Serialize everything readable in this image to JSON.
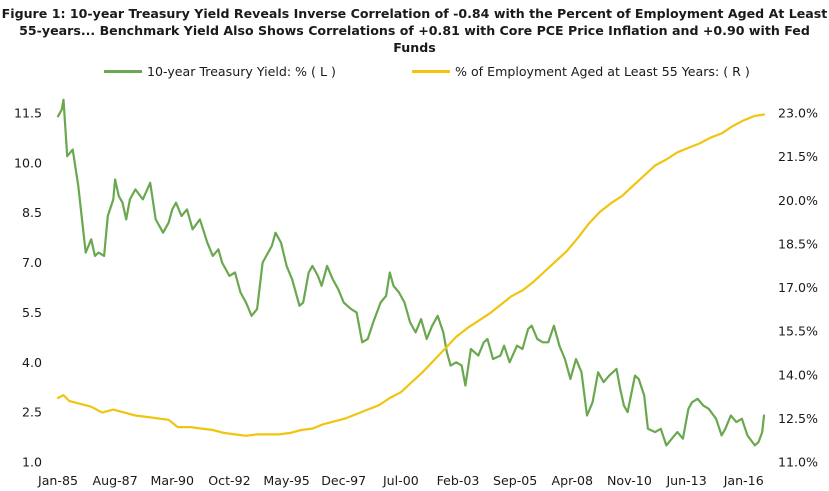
{
  "title": "Figure 1: 10-year Treasury Yield Reveals Inverse Correlation of -0.84 with the Percent of Employment Aged At Least 55-years... Benchmark Yield Also Shows Correlations of +0.81 with Core PCE Price Inflation and +0.90 with Fed Funds",
  "chart_data": {
    "type": "line",
    "title": "Figure 1: 10-year Treasury Yield Reveals Inverse Correlation of -0.84 with the Percent of Employment Aged At Least 55-years... Benchmark Yield Also Shows Correlations of +0.81 with Core PCE Price Inflation and +0.90 with Fed Funds",
    "x_tick_labels": [
      "Jan-85",
      "Aug-87",
      "Mar-90",
      "Oct-92",
      "May-95",
      "Dec-97",
      "Jul-00",
      "Feb-03",
      "Sep-05",
      "Apr-08",
      "Nov-10",
      "Jun-13",
      "Jan-16"
    ],
    "x_range": [
      "1985-01",
      "2016-12"
    ],
    "y_left": {
      "ticks": [
        "1.0",
        "2.5",
        "4.0",
        "5.5",
        "7.0",
        "8.5",
        "10.0",
        "11.5"
      ],
      "range": [
        1.0,
        11.5
      ]
    },
    "y_right": {
      "ticks": [
        "11.0%",
        "12.5%",
        "14.0%",
        "15.5%",
        "17.0%",
        "18.5%",
        "20.0%",
        "21.5%",
        "23.0%"
      ],
      "range": [
        11.0,
        23.0
      ]
    },
    "grid": false,
    "legend_position": "top",
    "series": [
      {
        "name": "10-year Treasury Yield: % ( L )",
        "axis": "left",
        "color": "#6aa84f",
        "points": [
          [
            "1985-01",
            11.4
          ],
          [
            "1985-03",
            11.6
          ],
          [
            "1985-04",
            11.9
          ],
          [
            "1985-06",
            10.2
          ],
          [
            "1985-09",
            10.4
          ],
          [
            "1985-12",
            9.3
          ],
          [
            "1986-02",
            8.3
          ],
          [
            "1986-04",
            7.3
          ],
          [
            "1986-07",
            7.7
          ],
          [
            "1986-09",
            7.2
          ],
          [
            "1986-11",
            7.3
          ],
          [
            "1987-02",
            7.2
          ],
          [
            "1987-04",
            8.4
          ],
          [
            "1987-07",
            8.9
          ],
          [
            "1987-08",
            9.5
          ],
          [
            "1987-10",
            9.0
          ],
          [
            "1987-12",
            8.8
          ],
          [
            "1988-02",
            8.3
          ],
          [
            "1988-04",
            8.9
          ],
          [
            "1988-07",
            9.2
          ],
          [
            "1988-11",
            8.9
          ],
          [
            "1989-03",
            9.4
          ],
          [
            "1989-06",
            8.3
          ],
          [
            "1989-10",
            7.9
          ],
          [
            "1990-01",
            8.2
          ],
          [
            "1990-03",
            8.6
          ],
          [
            "1990-05",
            8.8
          ],
          [
            "1990-08",
            8.4
          ],
          [
            "1990-11",
            8.6
          ],
          [
            "1991-02",
            8.0
          ],
          [
            "1991-06",
            8.3
          ],
          [
            "1991-10",
            7.6
          ],
          [
            "1992-01",
            7.2
          ],
          [
            "1992-04",
            7.4
          ],
          [
            "1992-06",
            7.0
          ],
          [
            "1992-10",
            6.6
          ],
          [
            "1993-01",
            6.7
          ],
          [
            "1993-04",
            6.1
          ],
          [
            "1993-07",
            5.8
          ],
          [
            "1993-10",
            5.4
          ],
          [
            "1994-01",
            5.6
          ],
          [
            "1994-04",
            7.0
          ],
          [
            "1994-07",
            7.3
          ],
          [
            "1994-09",
            7.5
          ],
          [
            "1994-11",
            7.9
          ],
          [
            "1995-02",
            7.6
          ],
          [
            "1995-05",
            6.9
          ],
          [
            "1995-08",
            6.5
          ],
          [
            "1995-12",
            5.7
          ],
          [
            "1996-02",
            5.8
          ],
          [
            "1996-05",
            6.7
          ],
          [
            "1996-07",
            6.9
          ],
          [
            "1996-10",
            6.6
          ],
          [
            "1996-12",
            6.3
          ],
          [
            "1997-03",
            6.9
          ],
          [
            "1997-06",
            6.5
          ],
          [
            "1997-09",
            6.2
          ],
          [
            "1997-12",
            5.8
          ],
          [
            "1998-04",
            5.6
          ],
          [
            "1998-07",
            5.5
          ],
          [
            "1998-10",
            4.6
          ],
          [
            "1999-01",
            4.7
          ],
          [
            "1999-04",
            5.2
          ],
          [
            "1999-08",
            5.8
          ],
          [
            "1999-11",
            6.0
          ],
          [
            "2000-01",
            6.7
          ],
          [
            "2000-03",
            6.3
          ],
          [
            "2000-06",
            6.1
          ],
          [
            "2000-09",
            5.8
          ],
          [
            "2000-12",
            5.2
          ],
          [
            "2001-03",
            4.9
          ],
          [
            "2001-06",
            5.3
          ],
          [
            "2001-09",
            4.7
          ],
          [
            "2001-12",
            5.1
          ],
          [
            "2002-03",
            5.4
          ],
          [
            "2002-06",
            4.9
          ],
          [
            "2002-08",
            4.3
          ],
          [
            "2002-10",
            3.9
          ],
          [
            "2003-01",
            4.0
          ],
          [
            "2003-04",
            3.9
          ],
          [
            "2003-06",
            3.3
          ],
          [
            "2003-09",
            4.4
          ],
          [
            "2004-01",
            4.2
          ],
          [
            "2004-04",
            4.6
          ],
          [
            "2004-06",
            4.7
          ],
          [
            "2004-09",
            4.1
          ],
          [
            "2005-01",
            4.2
          ],
          [
            "2005-03",
            4.5
          ],
          [
            "2005-06",
            4.0
          ],
          [
            "2005-10",
            4.5
          ],
          [
            "2006-01",
            4.4
          ],
          [
            "2006-04",
            5.0
          ],
          [
            "2006-06",
            5.1
          ],
          [
            "2006-09",
            4.7
          ],
          [
            "2006-12",
            4.6
          ],
          [
            "2007-03",
            4.6
          ],
          [
            "2007-06",
            5.1
          ],
          [
            "2007-09",
            4.5
          ],
          [
            "2007-12",
            4.1
          ],
          [
            "2008-03",
            3.5
          ],
          [
            "2008-06",
            4.1
          ],
          [
            "2008-09",
            3.7
          ],
          [
            "2008-12",
            2.4
          ],
          [
            "2009-03",
            2.8
          ],
          [
            "2009-06",
            3.7
          ],
          [
            "2009-09",
            3.4
          ],
          [
            "2009-12",
            3.6
          ],
          [
            "2010-04",
            3.8
          ],
          [
            "2010-06",
            3.2
          ],
          [
            "2010-08",
            2.7
          ],
          [
            "2010-10",
            2.5
          ],
          [
            "2011-02",
            3.6
          ],
          [
            "2011-04",
            3.5
          ],
          [
            "2011-07",
            3.0
          ],
          [
            "2011-09",
            2.0
          ],
          [
            "2012-01",
            1.9
          ],
          [
            "2012-04",
            2.0
          ],
          [
            "2012-07",
            1.5
          ],
          [
            "2012-10",
            1.7
          ],
          [
            "2013-01",
            1.9
          ],
          [
            "2013-04",
            1.7
          ],
          [
            "2013-07",
            2.6
          ],
          [
            "2013-09",
            2.8
          ],
          [
            "2013-12",
            2.9
          ],
          [
            "2014-03",
            2.7
          ],
          [
            "2014-06",
            2.6
          ],
          [
            "2014-10",
            2.3
          ],
          [
            "2015-01",
            1.8
          ],
          [
            "2015-03",
            2.0
          ],
          [
            "2015-06",
            2.4
          ],
          [
            "2015-09",
            2.2
          ],
          [
            "2015-12",
            2.3
          ],
          [
            "2016-03",
            1.8
          ],
          [
            "2016-07",
            1.5
          ],
          [
            "2016-09",
            1.6
          ],
          [
            "2016-11",
            1.9
          ],
          [
            "2016-12",
            2.4
          ]
        ]
      },
      {
        "name": "% of Employment Aged at Least 55 Years: ( R )",
        "axis": "right",
        "color": "#f1c40f",
        "points": [
          [
            "1985-01",
            13.2
          ],
          [
            "1985-04",
            13.3
          ],
          [
            "1985-07",
            13.1
          ],
          [
            "1986-01",
            13.0
          ],
          [
            "1986-07",
            12.9
          ],
          [
            "1987-01",
            12.7
          ],
          [
            "1987-07",
            12.8
          ],
          [
            "1988-01",
            12.7
          ],
          [
            "1988-07",
            12.6
          ],
          [
            "1989-01",
            12.55
          ],
          [
            "1989-07",
            12.5
          ],
          [
            "1990-01",
            12.45
          ],
          [
            "1990-06",
            12.2
          ],
          [
            "1991-01",
            12.2
          ],
          [
            "1991-07",
            12.15
          ],
          [
            "1992-01",
            12.1
          ],
          [
            "1992-07",
            12.0
          ],
          [
            "1993-01",
            11.95
          ],
          [
            "1993-07",
            11.9
          ],
          [
            "1994-01",
            11.95
          ],
          [
            "1994-07",
            11.95
          ],
          [
            "1995-01",
            11.95
          ],
          [
            "1995-07",
            12.0
          ],
          [
            "1996-01",
            12.1
          ],
          [
            "1996-07",
            12.15
          ],
          [
            "1997-01",
            12.3
          ],
          [
            "1997-07",
            12.4
          ],
          [
            "1998-01",
            12.5
          ],
          [
            "1998-07",
            12.65
          ],
          [
            "1999-01",
            12.8
          ],
          [
            "1999-07",
            12.95
          ],
          [
            "2000-01",
            13.2
          ],
          [
            "2000-07",
            13.4
          ],
          [
            "2001-01",
            13.75
          ],
          [
            "2001-07",
            14.1
          ],
          [
            "2002-01",
            14.5
          ],
          [
            "2002-07",
            14.9
          ],
          [
            "2003-01",
            15.3
          ],
          [
            "2003-07",
            15.6
          ],
          [
            "2004-01",
            15.85
          ],
          [
            "2004-07",
            16.1
          ],
          [
            "2005-01",
            16.4
          ],
          [
            "2005-07",
            16.7
          ],
          [
            "2006-01",
            16.9
          ],
          [
            "2006-07",
            17.2
          ],
          [
            "2007-01",
            17.55
          ],
          [
            "2007-07",
            17.9
          ],
          [
            "2008-01",
            18.25
          ],
          [
            "2008-07",
            18.7
          ],
          [
            "2009-01",
            19.2
          ],
          [
            "2009-07",
            19.6
          ],
          [
            "2010-01",
            19.9
          ],
          [
            "2010-07",
            20.15
          ],
          [
            "2011-01",
            20.5
          ],
          [
            "2011-07",
            20.85
          ],
          [
            "2012-01",
            21.2
          ],
          [
            "2012-07",
            21.4
          ],
          [
            "2013-01",
            21.65
          ],
          [
            "2013-07",
            21.8
          ],
          [
            "2014-01",
            21.95
          ],
          [
            "2014-07",
            22.15
          ],
          [
            "2015-01",
            22.3
          ],
          [
            "2015-07",
            22.55
          ],
          [
            "2016-01",
            22.75
          ],
          [
            "2016-07",
            22.9
          ],
          [
            "2016-12",
            22.95
          ]
        ]
      }
    ]
  }
}
